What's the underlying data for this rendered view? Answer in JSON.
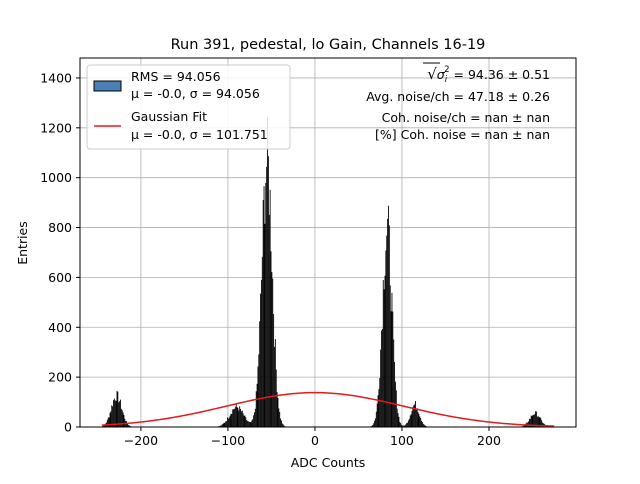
{
  "chart_data": {
    "type": "bar",
    "title": "Run 391, pedestal, lo Gain, Channels 16-19",
    "xlabel": "ADC Counts",
    "ylabel": "Entries",
    "xlim": [
      -270,
      300
    ],
    "ylim": [
      0,
      1480
    ],
    "xticks": [
      -200,
      -100,
      0,
      100,
      200
    ],
    "yticks": [
      0,
      200,
      400,
      600,
      800,
      1000,
      1200,
      1400
    ],
    "grid": true,
    "legend_position": "top-left",
    "series": [
      {
        "name": "RMS = 94.056",
        "stats_line": "μ = -0.0, σ = 94.056",
        "kind": "histogram",
        "color": "#4a80b5",
        "edge_color": "#000000",
        "peaks": [
          {
            "center": -228,
            "height": 125,
            "sigma": 6
          },
          {
            "center": -90,
            "height": 80,
            "sigma": 8
          },
          {
            "center": -55,
            "height": 1060,
            "sigma": 6
          },
          {
            "center": 83,
            "height": 790,
            "sigma": 5.5
          },
          {
            "center": 115,
            "height": 90,
            "sigma": 5
          },
          {
            "center": 253,
            "height": 55,
            "sigma": 6
          }
        ]
      },
      {
        "name": "Gaussian Fit",
        "stats_line": "μ = -0.0, σ = 101.751",
        "kind": "gaussian",
        "color": "#e41a1c",
        "mu": 0.0,
        "sigma": 101.751,
        "amplitude": 138,
        "x_range": [
          -245,
          275
        ]
      }
    ],
    "annotations": {
      "sigma_total_prefix": "√",
      "sigma_total_symbol": "σ",
      "sigma_total_sub": "i",
      "sigma_total_sup": "2",
      "sigma_total_value": " = 94.36 ± 0.51",
      "avg_noise": "Avg. noise/ch = 47.18 ± 0.26",
      "coh_noise": "Coh. noise/ch = nan ± nan",
      "coh_noise_pct": "[%] Coh. noise = nan ± nan"
    }
  }
}
